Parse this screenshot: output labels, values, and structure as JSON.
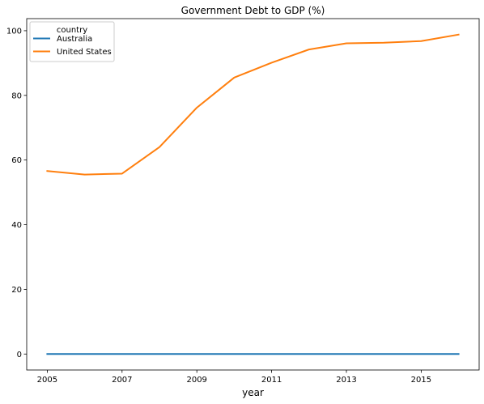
{
  "chart_data": {
    "type": "line",
    "title": "Government Debt to GDP (%)",
    "xlabel": "year",
    "ylabel": "",
    "x": [
      2005,
      2006,
      2007,
      2008,
      2009,
      2010,
      2011,
      2012,
      2013,
      2014,
      2015,
      2016
    ],
    "xticks": [
      "2005",
      "2007",
      "2009",
      "2011",
      "2013",
      "2015"
    ],
    "yticks": [
      "0",
      "20",
      "40",
      "60",
      "80",
      "100"
    ],
    "xlim": [
      2004.45,
      2016.55
    ],
    "ylim": [
      -4.94,
      103.74
    ],
    "grid": false,
    "legend": {
      "title": "country",
      "position": "top-left"
    },
    "series": [
      {
        "name": "Australia",
        "color": "#1f77b4",
        "values": [
          0.01,
          0.01,
          0.01,
          0.01,
          0.01,
          0.01,
          0.01,
          0.01,
          0.01,
          0.01,
          0.01,
          0.01
        ]
      },
      {
        "name": "United States",
        "color": "#ff7f0e",
        "values": [
          56.6,
          55.5,
          55.8,
          64.0,
          76.2,
          85.5,
          90.1,
          94.2,
          96.1,
          96.3,
          96.8,
          98.8
        ]
      }
    ]
  }
}
